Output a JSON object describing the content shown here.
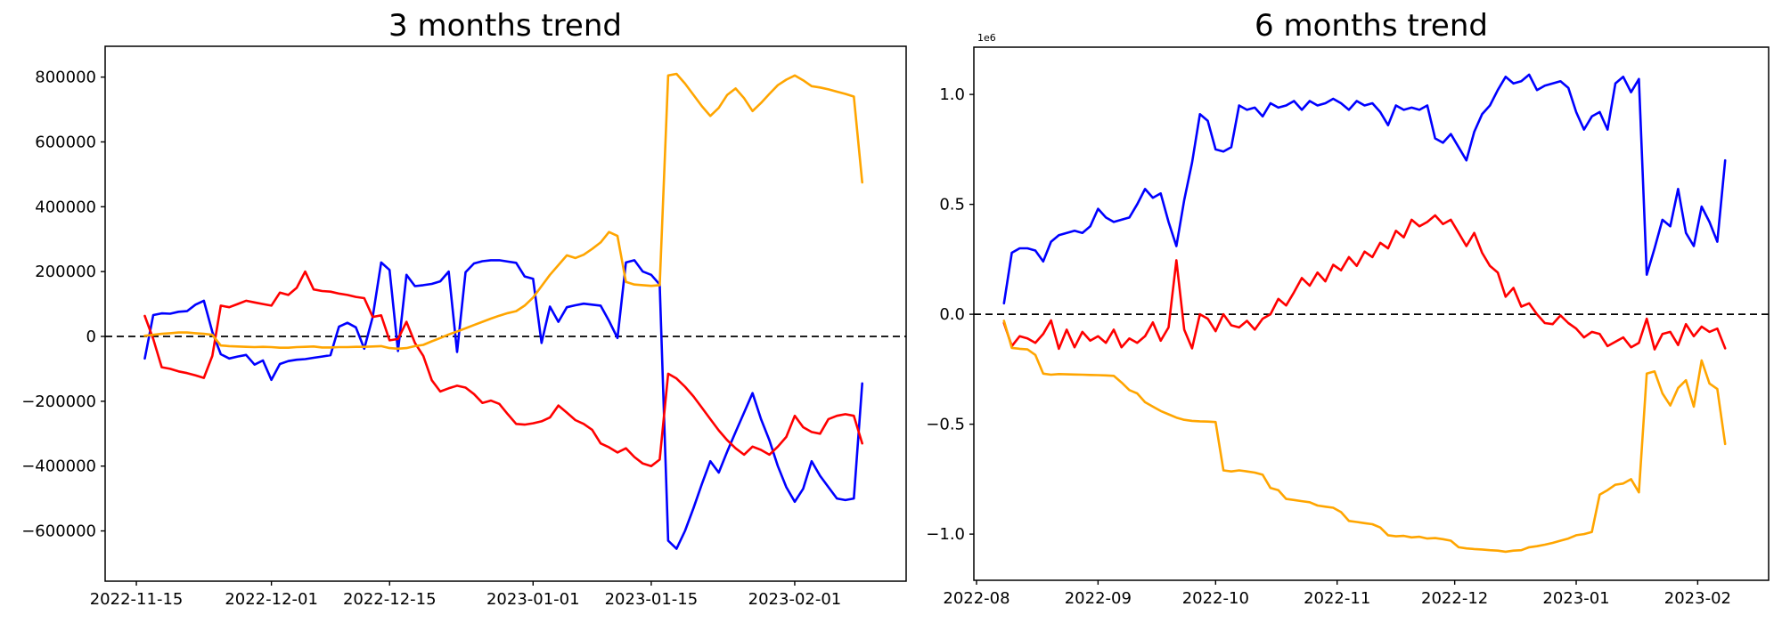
{
  "figure": {
    "background": "#ffffff",
    "text_color": "#000000",
    "spine_color": "#000000",
    "zero_line_color": "#000000"
  },
  "chart_data": [
    {
      "type": "line",
      "title": "3 months trend",
      "xlabel": "",
      "ylabel": "",
      "grid": false,
      "legend": null,
      "value_scale": 1000,
      "x_step": 1,
      "x_start_date": "2022-11-16",
      "xlim": [
        -4.7,
        90.2
      ],
      "ylim": [
        -755,
        895
      ],
      "zero_line": true,
      "offset_label": "",
      "x_ticks": [
        {
          "x": -1,
          "label": "2022-11-15"
        },
        {
          "x": 15,
          "label": "2022-12-01"
        },
        {
          "x": 29,
          "label": "2022-12-15"
        },
        {
          "x": 46,
          "label": "2023-01-01"
        },
        {
          "x": 60,
          "label": "2023-01-15"
        },
        {
          "x": 77,
          "label": "2023-02-01"
        }
      ],
      "y_ticks": [
        {
          "v": -600,
          "label": "−600000"
        },
        {
          "v": -400,
          "label": "−400000"
        },
        {
          "v": -200,
          "label": "−200000"
        },
        {
          "v": 0,
          "label": "0"
        },
        {
          "v": 200,
          "label": "200000"
        },
        {
          "v": 400,
          "label": "400000"
        },
        {
          "v": 600,
          "label": "600000"
        },
        {
          "v": 800,
          "label": "800000"
        }
      ],
      "series": [
        {
          "name": "blue",
          "color": "#0000ff",
          "values": [
            -68,
            66,
            71,
            70,
            76,
            78,
            98,
            110,
            14,
            -55,
            -68,
            -62,
            -57,
            -87,
            -74,
            -134,
            -85,
            -76,
            -72,
            -70,
            -66,
            -62,
            -58,
            30,
            42,
            28,
            -38,
            60,
            228,
            205,
            -45,
            190,
            155,
            158,
            162,
            170,
            200,
            -48,
            198,
            225,
            232,
            235,
            235,
            231,
            227,
            185,
            178,
            -20,
            92,
            45,
            90,
            96,
            101,
            98,
            95,
            48,
            -5,
            228,
            235,
            200,
            190,
            160,
            -630,
            -655,
            -600,
            -530,
            -455,
            -385,
            -420,
            -355,
            -295,
            -235,
            -175,
            -255,
            -320,
            -400,
            -465,
            -510,
            -470,
            -385,
            -430,
            -465,
            -500,
            -505,
            -500,
            -145
          ]
        },
        {
          "name": "red",
          "color": "#ff0000",
          "values": [
            63,
            -8,
            -95,
            -100,
            -108,
            -113,
            -120,
            -128,
            -60,
            95,
            90,
            100,
            110,
            105,
            100,
            95,
            135,
            128,
            150,
            200,
            145,
            140,
            138,
            132,
            128,
            122,
            118,
            60,
            65,
            -12,
            -8,
            45,
            -20,
            -60,
            -135,
            -170,
            -160,
            -152,
            -158,
            -178,
            -205,
            -198,
            -208,
            -240,
            -270,
            -272,
            -268,
            -262,
            -250,
            -213,
            -235,
            -258,
            -270,
            -288,
            -330,
            -342,
            -358,
            -345,
            -372,
            -392,
            -400,
            -380,
            -115,
            -130,
            -155,
            -185,
            -220,
            -255,
            -290,
            -320,
            -345,
            -365,
            -340,
            -350,
            -365,
            -340,
            -310,
            -245,
            -280,
            -295,
            -300,
            -255,
            -245,
            -240,
            -245,
            -330
          ]
        },
        {
          "name": "orange",
          "color": "#ffa500",
          "values": [
            2,
            5,
            8,
            10,
            12,
            12,
            10,
            8,
            5,
            -28,
            -30,
            -31,
            -32,
            -33,
            -32,
            -33,
            -35,
            -35,
            -33,
            -32,
            -31,
            -34,
            -34,
            -33,
            -33,
            -32,
            -32,
            -31,
            -30,
            -36,
            -38,
            -36,
            -30,
            -26,
            -15,
            -5,
            6,
            15,
            25,
            35,
            45,
            55,
            64,
            72,
            78,
            95,
            120,
            155,
            190,
            220,
            250,
            242,
            252,
            270,
            290,
            322,
            310,
            168,
            160,
            158,
            156,
            158,
            805,
            810,
            780,
            745,
            710,
            680,
            705,
            745,
            765,
            735,
            695,
            720,
            748,
            775,
            792,
            805,
            790,
            772,
            768,
            762,
            755,
            748,
            740,
            475
          ]
        }
      ]
    },
    {
      "type": "line",
      "title": "6 months trend",
      "xlabel": "",
      "ylabel": "",
      "grid": false,
      "legend": null,
      "value_scale": 1000000,
      "x_step": 2,
      "x_start_date": "2022-08-08",
      "xlim": [
        -7.68,
        195.1
      ],
      "ylim": [
        -1.21,
        1.215
      ],
      "zero_line": true,
      "offset_label": "1e6",
      "x_ticks": [
        {
          "x": -7,
          "label": "2022-08"
        },
        {
          "x": 24,
          "label": "2022-09"
        },
        {
          "x": 54,
          "label": "2022-10"
        },
        {
          "x": 85,
          "label": "2022-11"
        },
        {
          "x": 115,
          "label": "2022-12"
        },
        {
          "x": 146,
          "label": "2023-01"
        },
        {
          "x": 177,
          "label": "2023-02"
        }
      ],
      "y_ticks": [
        {
          "v": -1.0,
          "label": "−1.0"
        },
        {
          "v": -0.5,
          "label": "−0.5"
        },
        {
          "v": 0.0,
          "label": "0.0"
        },
        {
          "v": 0.5,
          "label": "0.5"
        },
        {
          "v": 1.0,
          "label": "1.0"
        }
      ],
      "series": [
        {
          "name": "blue",
          "color": "#0000ff",
          "values": [
            0.05,
            0.28,
            0.3,
            0.3,
            0.29,
            0.24,
            0.33,
            0.36,
            0.37,
            0.38,
            0.37,
            0.4,
            0.48,
            0.44,
            0.42,
            0.43,
            0.44,
            0.5,
            0.57,
            0.53,
            0.55,
            0.42,
            0.31,
            0.52,
            0.69,
            0.91,
            0.88,
            0.75,
            0.74,
            0.76,
            0.95,
            0.93,
            0.94,
            0.9,
            0.96,
            0.94,
            0.95,
            0.97,
            0.93,
            0.97,
            0.95,
            0.96,
            0.98,
            0.96,
            0.93,
            0.97,
            0.95,
            0.96,
            0.92,
            0.86,
            0.95,
            0.93,
            0.94,
            0.93,
            0.95,
            0.8,
            0.78,
            0.82,
            0.76,
            0.7,
            0.83,
            0.91,
            0.95,
            1.02,
            1.08,
            1.05,
            1.06,
            1.09,
            1.02,
            1.04,
            1.05,
            1.06,
            1.03,
            0.92,
            0.84,
            0.9,
            0.92,
            0.84,
            1.05,
            1.08,
            1.01,
            1.07,
            0.18,
            0.3,
            0.43,
            0.4,
            0.57,
            0.37,
            0.31,
            0.49,
            0.42,
            0.33,
            0.7
          ]
        },
        {
          "name": "red",
          "color": "#ff0000",
          "values": [
            -0.04,
            -0.145,
            -0.1,
            -0.11,
            -0.13,
            -0.09,
            -0.028,
            -0.157,
            -0.07,
            -0.15,
            -0.08,
            -0.12,
            -0.1,
            -0.13,
            -0.07,
            -0.15,
            -0.11,
            -0.13,
            -0.1,
            -0.037,
            -0.12,
            -0.06,
            0.246,
            -0.07,
            -0.155,
            0.0,
            -0.02,
            -0.077,
            0.0,
            -0.05,
            -0.06,
            -0.03,
            -0.07,
            -0.02,
            0.0,
            0.07,
            0.04,
            0.1,
            0.165,
            0.13,
            0.19,
            0.15,
            0.225,
            0.2,
            0.26,
            0.22,
            0.285,
            0.26,
            0.325,
            0.3,
            0.38,
            0.35,
            0.43,
            0.4,
            0.42,
            0.45,
            0.41,
            0.43,
            0.37,
            0.31,
            0.37,
            0.28,
            0.22,
            0.19,
            0.08,
            0.12,
            0.035,
            0.05,
            0.0,
            -0.04,
            -0.045,
            -0.005,
            -0.04,
            -0.065,
            -0.105,
            -0.08,
            -0.09,
            -0.145,
            -0.125,
            -0.105,
            -0.15,
            -0.13,
            -0.02,
            -0.16,
            -0.09,
            -0.08,
            -0.14,
            -0.045,
            -0.1,
            -0.056,
            -0.08,
            -0.065,
            -0.155
          ]
        },
        {
          "name": "orange",
          "color": "#ffa500",
          "values": [
            -0.03,
            -0.153,
            -0.157,
            -0.16,
            -0.185,
            -0.27,
            -0.275,
            -0.272,
            -0.273,
            -0.274,
            -0.275,
            -0.276,
            -0.277,
            -0.278,
            -0.28,
            -0.31,
            -0.345,
            -0.36,
            -0.4,
            -0.42,
            -0.44,
            -0.455,
            -0.47,
            -0.48,
            -0.485,
            -0.487,
            -0.488,
            -0.49,
            -0.71,
            -0.715,
            -0.71,
            -0.715,
            -0.72,
            -0.73,
            -0.79,
            -0.8,
            -0.84,
            -0.845,
            -0.85,
            -0.855,
            -0.87,
            -0.875,
            -0.88,
            -0.9,
            -0.94,
            -0.945,
            -0.95,
            -0.955,
            -0.97,
            -1.005,
            -1.01,
            -1.008,
            -1.015,
            -1.012,
            -1.02,
            -1.018,
            -1.023,
            -1.03,
            -1.06,
            -1.065,
            -1.068,
            -1.07,
            -1.073,
            -1.075,
            -1.08,
            -1.075,
            -1.073,
            -1.06,
            -1.055,
            -1.048,
            -1.04,
            -1.03,
            -1.02,
            -1.005,
            -1.0,
            -0.99,
            -0.82,
            -0.8,
            -0.775,
            -0.77,
            -0.75,
            -0.81,
            -0.27,
            -0.26,
            -0.36,
            -0.415,
            -0.335,
            -0.3,
            -0.42,
            -0.21,
            -0.315,
            -0.34,
            -0.59
          ]
        }
      ]
    }
  ]
}
